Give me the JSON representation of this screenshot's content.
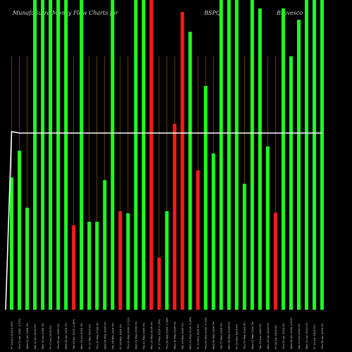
{
  "chart_data": {
    "type": "bar",
    "title_left": "MunafaSutra Money Flow Charts for",
    "title_symbol": "BSPQ",
    "title_right": "Bravesco",
    "categories": [
      "Fri 14 Jun 2024 4.93%",
      "Thu 13 Jun 2024 -2.13%",
      "Wed 12 Jun 2024 0%",
      "Tue 11 Jun 2024 0%",
      "Mon 10 Jun 2024 0%",
      "Fri 07 Jun 2024 0%",
      "Thu 06 Jun 2024 0%",
      "Wed 05 Jun 2024 0%",
      "Tue 04 Jun 2024 -2.49%",
      "Mon 03 Jun 2024 0%",
      "Fri 31 May 2024 0%",
      "Thu 30 May 2024 0%",
      "Wed 29 May 2024 0%",
      "Tue 28 May 2024 0%",
      "Fri 24 May 2024 0%",
      "Thu 23 May 2024 -1.21%",
      "Wed 22 May 2024 0%",
      "Tue 21 May 2024 0%",
      "Mon 20 May 2024 0%",
      "Fri 17 May 2024 -0.79%",
      "Thu 16 May 2024 -1.08%",
      "Wed 15 May 2024 0%",
      "Tue 14 May 2024 0%",
      "Mon 13 May 2024 -2.39%",
      "Fri 10 May 2024 0%",
      "Thu 09 May 2024 -0.72%",
      "Wed 08 May 2024 0%",
      "Tue 07 May 2024 0%",
      "Mon 06 May 2024 0%",
      "Fri 03 May 2024 0%",
      "Thu 02 May 2024 0%",
      "Wed 01 May 2024 0%",
      "Tue 30 Apr 2024 0%",
      "Mon 29 Apr 2024 0%",
      "Fri 26 Apr 2024 0%",
      "Thu 25 Apr 2024 0%",
      "Wed 24 Apr 2024 -0.67%",
      "Tue 23 Apr 2024 0%",
      "Mon 22 Apr 2024 0%",
      "Fri 19 Apr 2024 0%",
      "Thu 18 Apr 2024 0%"
    ],
    "values": [
      188,
      226,
      145,
      440,
      440,
      440,
      440,
      440,
      120,
      440,
      125,
      125,
      184,
      440,
      140,
      137,
      440,
      440,
      440,
      74,
      140,
      264,
      423,
      395,
      198,
      318,
      222,
      440,
      440,
      440,
      179,
      440,
      428,
      232,
      138,
      428,
      360,
      412,
      440,
      440,
      440
    ],
    "series_colors": [
      "#1fff1f",
      "#1fff1f",
      "#1fff1f",
      "#1fff1f",
      "#1fff1f",
      "#1fff1f",
      "#1fff1f",
      "#1fff1f",
      "#ff1a1a",
      "#1fff1f",
      "#1fff1f",
      "#1fff1f",
      "#1fff1f",
      "#1fff1f",
      "#ff1a1a",
      "#1fff1f",
      "#1fff1f",
      "#1fff1f",
      "#ff1a1a",
      "#ff1a1a",
      "#1fff1f",
      "#ff1a1a",
      "#ff1a1a",
      "#1fff1f",
      "#ff1a1a",
      "#1fff1f",
      "#1fff1f",
      "#1fff1f",
      "#1fff1f",
      "#1fff1f",
      "#1fff1f",
      "#1fff1f",
      "#1fff1f",
      "#1fff1f",
      "#ff1a1a",
      "#1fff1f",
      "#1fff1f",
      "#1fff1f",
      "#1fff1f",
      "#1fff1f",
      "#1fff1f"
    ],
    "price_line": [
      0,
      253,
      251,
      251,
      251,
      251,
      251,
      251,
      251,
      251,
      251,
      251,
      251,
      251,
      251,
      251,
      251,
      251,
      251,
      251,
      251,
      251,
      251,
      251,
      251,
      251,
      251,
      251,
      251,
      251,
      251,
      251,
      251,
      251,
      251,
      251,
      251,
      251,
      251,
      251,
      251,
      251
    ],
    "ylim": [
      0,
      440
    ],
    "grid": true,
    "colors": {
      "background": "#000000",
      "up": "#1fff1f",
      "down": "#ff1a1a",
      "grid": "#a36a00",
      "price_line": "#ffffff"
    }
  }
}
